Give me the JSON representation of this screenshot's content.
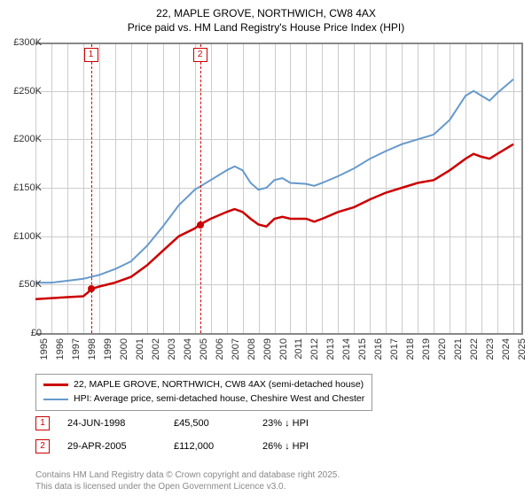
{
  "title_line1": "22, MAPLE GROVE, NORTHWICH, CW8 4AX",
  "title_line2": "Price paid vs. HM Land Registry's House Price Index (HPI)",
  "chart": {
    "type": "line",
    "background_color": "#ffffff",
    "grid_color": "#cccccc",
    "border_color": "#888888",
    "x_years": [
      1995,
      1996,
      1997,
      1998,
      1999,
      2000,
      2001,
      2002,
      2003,
      2004,
      2005,
      2006,
      2007,
      2008,
      2009,
      2010,
      2011,
      2012,
      2013,
      2014,
      2015,
      2016,
      2017,
      2018,
      2019,
      2020,
      2021,
      2022,
      2023,
      2024,
      2025
    ],
    "xlim": [
      1995,
      2025.5
    ],
    "ylim": [
      0,
      300000
    ],
    "ytick_step": 50000,
    "yticks": [
      "£0",
      "£50K",
      "£100K",
      "£150K",
      "£200K",
      "£250K",
      "£300K"
    ],
    "series": [
      {
        "name": "price_paid",
        "color": "#cc0000",
        "width": 2.5,
        "data": [
          [
            1995,
            35000
          ],
          [
            1996,
            36000
          ],
          [
            1997,
            37000
          ],
          [
            1998,
            38000
          ],
          [
            1998.3,
            42000
          ],
          [
            1998.48,
            45500
          ],
          [
            1999,
            48000
          ],
          [
            2000,
            52000
          ],
          [
            2001,
            58000
          ],
          [
            2002,
            70000
          ],
          [
            2003,
            85000
          ],
          [
            2004,
            100000
          ],
          [
            2005,
            108000
          ],
          [
            2005.33,
            112000
          ],
          [
            2006,
            118000
          ],
          [
            2007,
            125000
          ],
          [
            2007.5,
            128000
          ],
          [
            2008,
            125000
          ],
          [
            2008.5,
            118000
          ],
          [
            2009,
            112000
          ],
          [
            2009.5,
            110000
          ],
          [
            2010,
            118000
          ],
          [
            2010.5,
            120000
          ],
          [
            2011,
            118000
          ],
          [
            2012,
            118000
          ],
          [
            2012.5,
            115000
          ],
          [
            2013,
            118000
          ],
          [
            2014,
            125000
          ],
          [
            2015,
            130000
          ],
          [
            2016,
            138000
          ],
          [
            2017,
            145000
          ],
          [
            2018,
            150000
          ],
          [
            2019,
            155000
          ],
          [
            2020,
            158000
          ],
          [
            2021,
            168000
          ],
          [
            2022,
            180000
          ],
          [
            2022.5,
            185000
          ],
          [
            2023,
            182000
          ],
          [
            2023.5,
            180000
          ],
          [
            2024,
            185000
          ],
          [
            2025,
            195000
          ]
        ]
      },
      {
        "name": "hpi",
        "color": "#6699cc",
        "width": 2,
        "data": [
          [
            1995,
            52000
          ],
          [
            1996,
            52000
          ],
          [
            1997,
            54000
          ],
          [
            1998,
            56000
          ],
          [
            1999,
            60000
          ],
          [
            2000,
            66000
          ],
          [
            2001,
            74000
          ],
          [
            2002,
            90000
          ],
          [
            2003,
            110000
          ],
          [
            2004,
            132000
          ],
          [
            2005,
            148000
          ],
          [
            2006,
            158000
          ],
          [
            2007,
            168000
          ],
          [
            2007.5,
            172000
          ],
          [
            2008,
            168000
          ],
          [
            2008.5,
            155000
          ],
          [
            2009,
            148000
          ],
          [
            2009.5,
            150000
          ],
          [
            2010,
            158000
          ],
          [
            2010.5,
            160000
          ],
          [
            2011,
            155000
          ],
          [
            2012,
            154000
          ],
          [
            2012.5,
            152000
          ],
          [
            2013,
            155000
          ],
          [
            2014,
            162000
          ],
          [
            2015,
            170000
          ],
          [
            2016,
            180000
          ],
          [
            2017,
            188000
          ],
          [
            2018,
            195000
          ],
          [
            2019,
            200000
          ],
          [
            2020,
            205000
          ],
          [
            2021,
            220000
          ],
          [
            2022,
            245000
          ],
          [
            2022.5,
            250000
          ],
          [
            2023,
            245000
          ],
          [
            2023.5,
            240000
          ],
          [
            2024,
            248000
          ],
          [
            2025,
            262000
          ]
        ]
      }
    ],
    "sale_points": [
      {
        "x": 1998.48,
        "y": 45500,
        "color": "#cc0000"
      },
      {
        "x": 2005.33,
        "y": 112000,
        "color": "#cc0000"
      }
    ],
    "markers": [
      {
        "num": "1",
        "x": 1998.48
      },
      {
        "num": "2",
        "x": 2005.33
      }
    ]
  },
  "legend": {
    "items": [
      {
        "color": "#cc0000",
        "width": 3,
        "label": "22, MAPLE GROVE, NORTHWICH, CW8 4AX (semi-detached house)"
      },
      {
        "color": "#6699cc",
        "width": 2,
        "label": "HPI: Average price, semi-detached house, Cheshire West and Chester"
      }
    ]
  },
  "sales": [
    {
      "num": "1",
      "date": "24-JUN-1998",
      "price": "£45,500",
      "diff": "23% ↓ HPI"
    },
    {
      "num": "2",
      "date": "29-APR-2005",
      "price": "£112,000",
      "diff": "26% ↓ HPI"
    }
  ],
  "footer_line1": "Contains HM Land Registry data © Crown copyright and database right 2025.",
  "footer_line2": "This data is licensed under the Open Government Licence v3.0."
}
